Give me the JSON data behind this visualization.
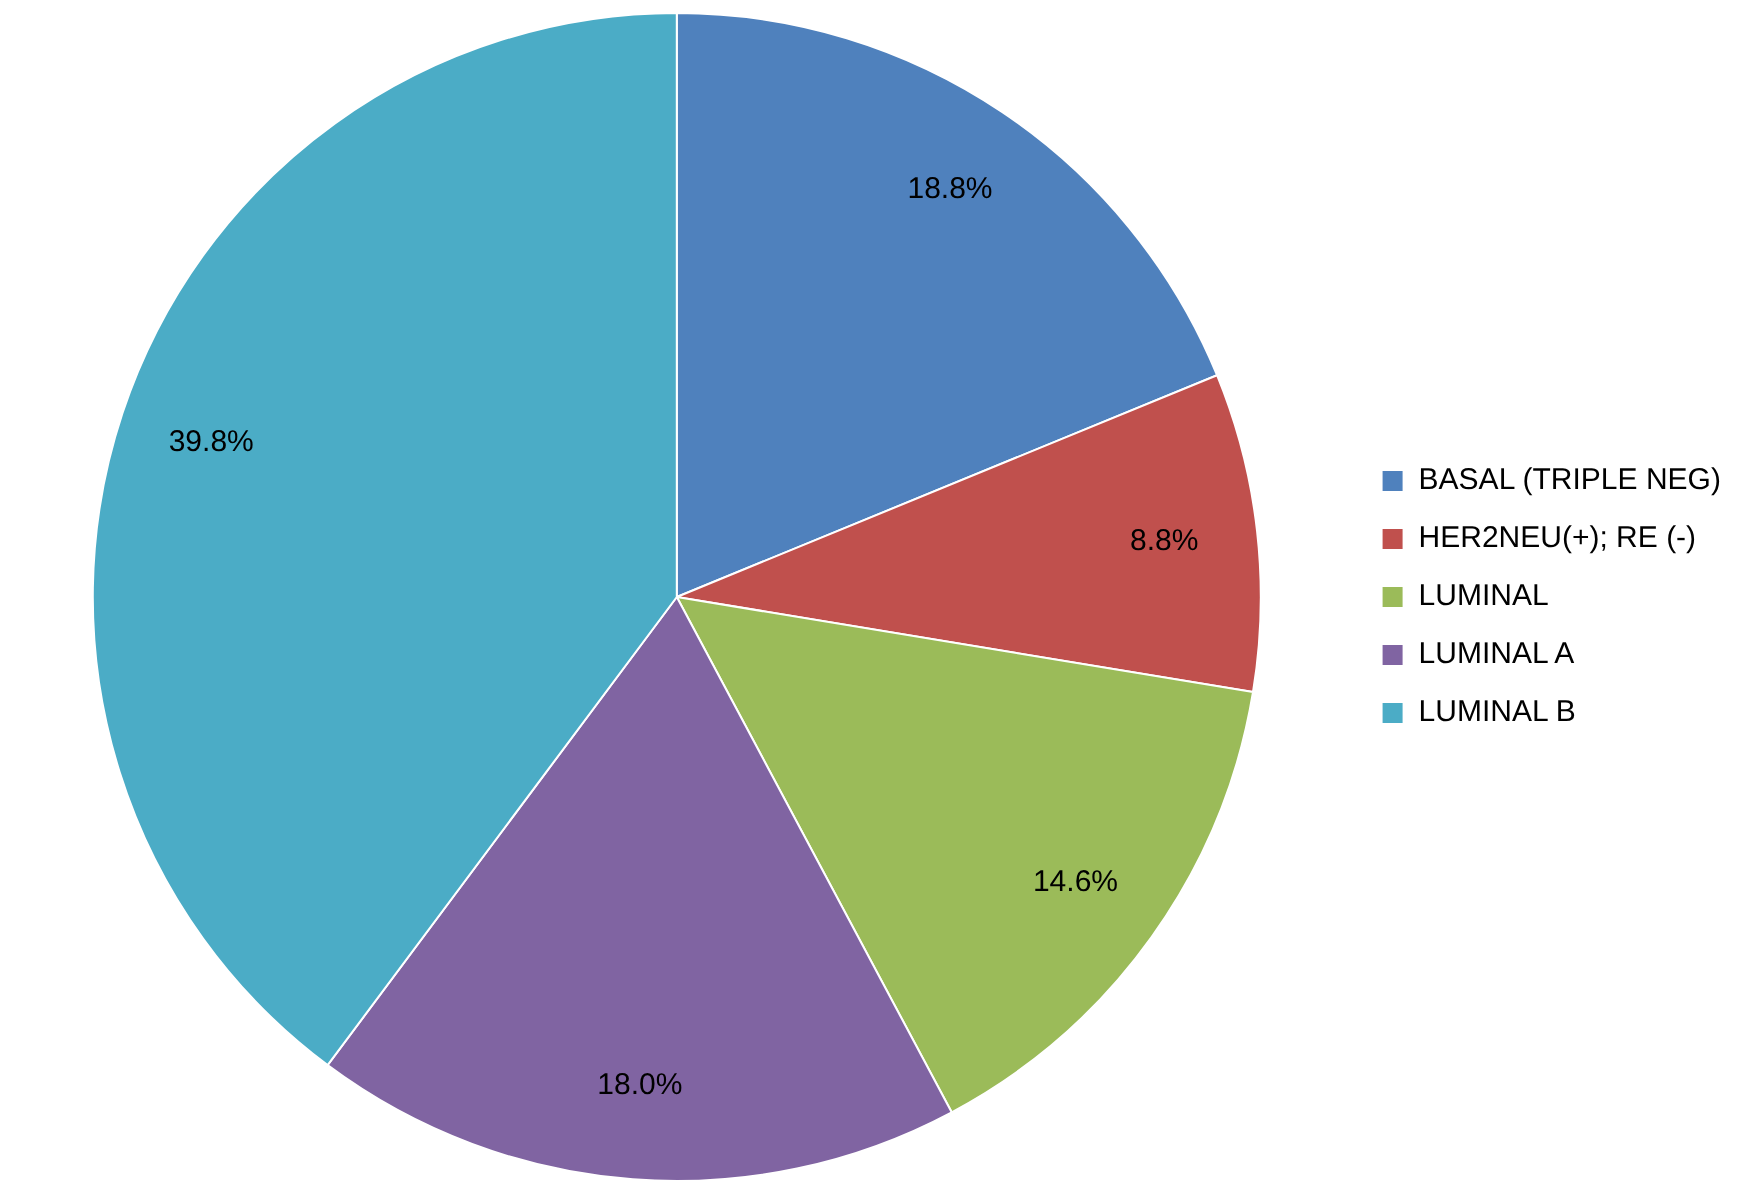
{
  "chart_data": {
    "type": "pie",
    "categories": [
      "BASAL (TRIPLE NEG)",
      "HER2NEU(+); RE (-)",
      "LUMINAL",
      "LUMINAL A",
      "LUMINAL B"
    ],
    "values": [
      18.8,
      8.8,
      14.6,
      18.0,
      39.8
    ],
    "value_labels": [
      "18.8%",
      "8.8%",
      "14.6%",
      "18.0%",
      "39.8%"
    ],
    "colors": [
      "#4f81bd",
      "#c0504d",
      "#9bbb59",
      "#8064a2",
      "#4bacc6"
    ],
    "legend": "right"
  }
}
